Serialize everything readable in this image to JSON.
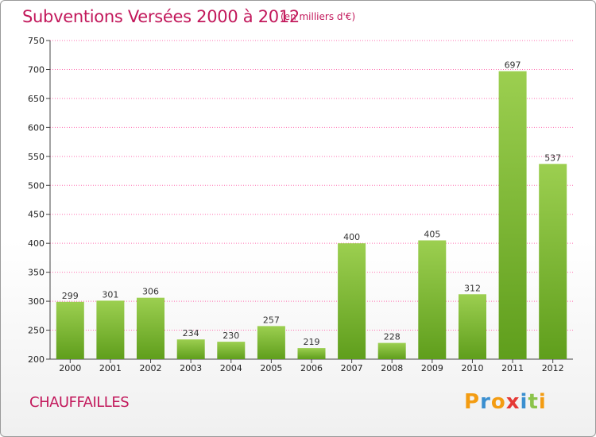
{
  "header": {
    "title": "Subventions Versées 2000 à 2012",
    "subtitle": "(en milliers d'€)"
  },
  "footer": {
    "commune": "CHAUFFAILLES",
    "logo_letters": [
      {
        "char": "P",
        "color": "#f39c12"
      },
      {
        "char": "r",
        "color": "#3a8fd0"
      },
      {
        "char": "o",
        "color": "#f39c12"
      },
      {
        "char": "x",
        "color": "#e53935"
      },
      {
        "char": "i",
        "color": "#3a8fd0"
      },
      {
        "char": "t",
        "color": "#8bc34a"
      },
      {
        "char": "i",
        "color": "#f39c12"
      }
    ]
  },
  "colors": {
    "bar_light": "#9ccf50",
    "bar_dark": "#5f9e1c",
    "grid": "#ff6fb0",
    "title": "#c2185b"
  },
  "chart_data": {
    "type": "bar",
    "title": "Subventions Versées 2000 à 2012",
    "subtitle": "(en milliers d'€)",
    "xlabel": "",
    "ylabel": "",
    "categories": [
      "2000",
      "2001",
      "2002",
      "2003",
      "2004",
      "2005",
      "2006",
      "2007",
      "2008",
      "2009",
      "2010",
      "2011",
      "2012"
    ],
    "values": [
      299,
      301,
      306,
      234,
      230,
      257,
      219,
      400,
      228,
      405,
      312,
      697,
      537
    ],
    "ylim": [
      200,
      750
    ],
    "yticks": [
      200,
      250,
      300,
      350,
      400,
      450,
      500,
      550,
      600,
      650,
      700,
      750
    ],
    "grid": true,
    "legend": "none"
  }
}
